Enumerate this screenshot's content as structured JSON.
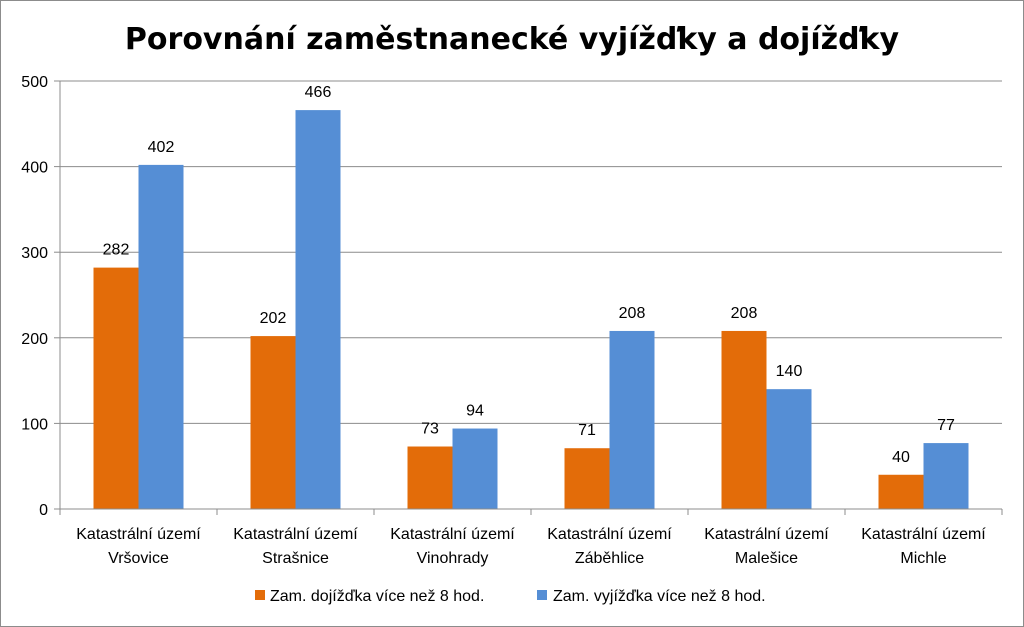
{
  "chart_data": {
    "type": "bar",
    "title": "Porovnání zaměstnanecké vyjížďky a dojížďky",
    "xlabel": "",
    "ylabel": "",
    "ylim": [
      0,
      500
    ],
    "yticks": [
      0,
      100,
      200,
      300,
      400,
      500
    ],
    "grid": true,
    "legend_position": "bottom",
    "categories": [
      [
        "Katastrální území",
        "Vršovice"
      ],
      [
        "Katastrální území",
        "Strašnice"
      ],
      [
        "Katastrální území",
        "Vinohrady"
      ],
      [
        "Katastrální území",
        "Záběhlice"
      ],
      [
        "Katastrální území",
        "Malešice"
      ],
      [
        "Katastrální území",
        "Michle"
      ]
    ],
    "series": [
      {
        "name": "Zam. dojížďka více než 8 hod.",
        "color": "#E36C09",
        "values": [
          282,
          202,
          73,
          71,
          208,
          40
        ]
      },
      {
        "name": "Zam. vyjížďka více než 8 hod.",
        "color": "#558ED5",
        "values": [
          402,
          466,
          94,
          208,
          140,
          77
        ]
      }
    ]
  }
}
